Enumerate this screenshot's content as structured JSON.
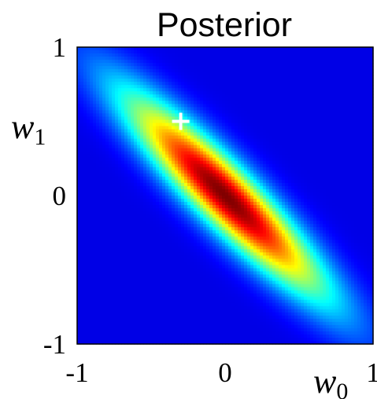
{
  "chart_data": {
    "type": "heatmap",
    "title": "Posterior",
    "xlabel": {
      "base": "w",
      "sub": "0"
    },
    "ylabel": {
      "base": "w",
      "sub": "1"
    },
    "xlim": [
      -1,
      1
    ],
    "ylim": [
      -1,
      1
    ],
    "x_ticks": [
      {
        "value": -1,
        "label": "-1"
      },
      {
        "value": 0,
        "label": "0"
      },
      {
        "value": 1,
        "label": "1"
      }
    ],
    "y_ticks": [
      {
        "value": -1,
        "label": "-1"
      },
      {
        "value": 0,
        "label": "0"
      },
      {
        "value": 1,
        "label": "1"
      }
    ],
    "colormap": "jet",
    "distribution": {
      "mean": [
        0.0,
        0.0
      ],
      "sigma_w0": 0.47,
      "sigma_w1": 0.47,
      "correlation": -0.915
    },
    "marker": {
      "symbol": "+",
      "color": "#ffffff",
      "w0": -0.3,
      "w1": 0.5
    },
    "grid": false,
    "legend": "none"
  }
}
